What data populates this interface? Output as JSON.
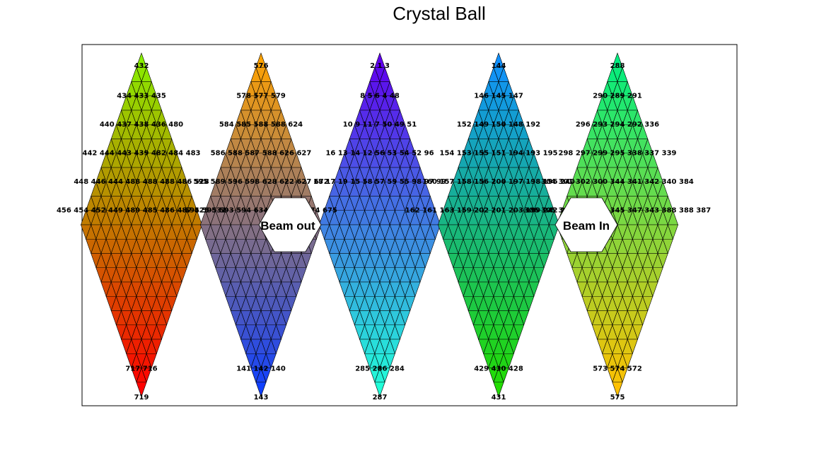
{
  "chart_data": {
    "type": "heatmap",
    "title": "Crystal Ball",
    "layout": "geodesic triangular crystal map (5 rhombi of triangular cells, two hexagonal openings)",
    "cell_count": 720,
    "cell_index_range": [
      0,
      719
    ],
    "colormap": "rainbow",
    "color_value_is_cell_index": true,
    "legend": "none",
    "grid": false,
    "rhombi": [
      {
        "name": "rhombus-1",
        "top_label": "432",
        "bottom_label": "719",
        "top_color": "#88ee00",
        "bottom_color": "#ff0000"
      },
      {
        "name": "rhombus-2",
        "top_label": "576",
        "bottom_label": "143",
        "top_color": "#ffa200",
        "bottom_color": "#1040ff"
      },
      {
        "name": "rhombus-3",
        "top_label": "",
        "bottom_label": "287",
        "top_color": "#6000ee",
        "bottom_color": "#20ffd8"
      },
      {
        "name": "rhombus-4",
        "top_label": "144",
        "bottom_label": "431",
        "top_color": "#1090ff",
        "bottom_color": "#22dd00"
      },
      {
        "name": "rhombus-5",
        "top_label": "288",
        "bottom_label": "575",
        "top_color": "#00ee80",
        "bottom_color": "#ffc000"
      }
    ],
    "row_labels": {
      "rhombus-1": [
        "432",
        "434 433 435",
        "440 437 438 436 480",
        "442 444 443 439 482 484 483",
        "448 446 444 488 488 488 486 528",
        "456 454 452 449 489 485 486 487 525 531"
      ],
      "rhombus-2": [
        "576",
        "578 577 579",
        "584 585 588 588 624",
        "586 588 587 588 626 627",
        "595 589 596 598 628 622 627 672",
        "594 595 593 594 634 633 674 674 675"
      ],
      "rhombus-3": [
        "2 1 3",
        "8 5 6 4 48",
        "10 9 11 7 50 49 51",
        "16 13 14 12 56 53 54 52 96",
        "18 17 19 15 58 57 59 55 98 97 99"
      ],
      "rhombus-4": [
        "144",
        "146 145 147",
        "152 149 150 148 192",
        "154 153 155 151 194 193 195",
        "160 157 158 156 200 197 198 196 240",
        "162 161 163 159 202 201 203 199 242 241 243"
      ],
      "rhombus-5": [
        "288",
        "290 289 291",
        "296 293 294 292 336",
        "298 297 299 295 338 337 339",
        "304 301 302 300 344 341 342 340 384",
        "306 305 303 304 346 345 347 343 388 388 387"
      ]
    },
    "bottom_row_labels": {
      "rhombus-1": [
        "717 716",
        "719"
      ],
      "rhombus-2": [
        "141 142 140",
        "143"
      ],
      "rhombus-3": [
        "285 286 284",
        "287"
      ],
      "rhombus-4": [
        "429 430 428",
        "431"
      ],
      "rhombus-5": [
        "573 574 572",
        "575"
      ]
    }
  },
  "annotations": {
    "beam_out": "Beam out",
    "beam_in": "Beam In"
  }
}
